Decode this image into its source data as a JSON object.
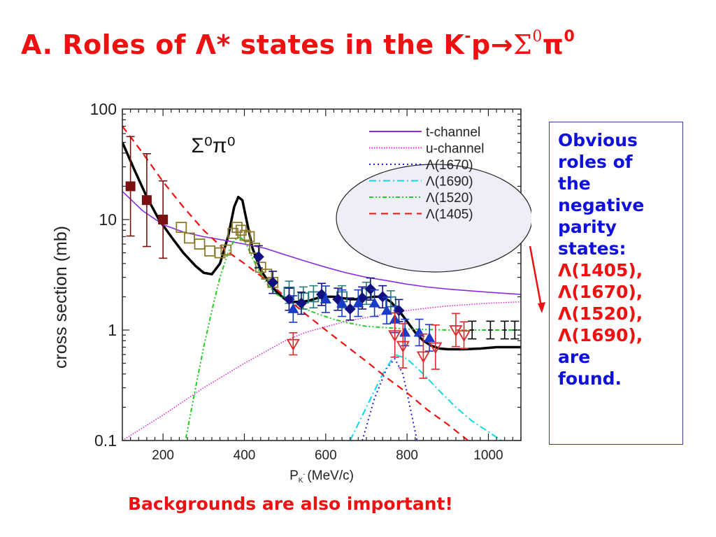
{
  "slide": {
    "title_prefix": "A. Roles of Λ* states  in the K",
    "title_sup1": "-",
    "title_p": "p",
    "title_arrow": "→",
    "title_sigma": "Σ",
    "title_sup2": "0",
    "title_pi": "π",
    "title_sup3": "0",
    "side_lines_blue": [
      "Obvious",
      "roles of",
      "the",
      "negative",
      "parity",
      "states:"
    ],
    "side_lines_red": [
      "Λ(1405),",
      "Λ(1670),",
      "Λ(1520),",
      "Λ(1690),"
    ],
    "side_lines_end": [
      "are",
      "found."
    ],
    "caption": "Backgrounds are also important!"
  },
  "colors": {
    "title": "#ee1111",
    "side_text": "#1010dd",
    "ellipse_fill": "#eeeef8"
  },
  "chart_data": {
    "type": "line",
    "ylabel": "cross section (mb)",
    "xlabel_main": "P",
    "xlabel_sub": "K",
    "xlabel_sub_sup": "-",
    "xlabel_unit": "(MeV/c)",
    "inset_label": "Σ⁰π⁰",
    "xlim": [
      100,
      1080
    ],
    "ylim": [
      0.1,
      100
    ],
    "yscale": "log",
    "xticks": [
      200,
      400,
      600,
      800,
      1000
    ],
    "yticks": [
      {
        "v": 0.1,
        "label": "0.1"
      },
      {
        "v": 1,
        "label": "1"
      },
      {
        "v": 10,
        "label": "10"
      },
      {
        "v": 100,
        "label": "100"
      }
    ],
    "legend_position": "top-right",
    "legend": [
      {
        "label": "t-channel",
        "color": "#8a2be2",
        "dash": ""
      },
      {
        "label": "u-channel",
        "color": "#e020e0",
        "dash": "1.5,2"
      },
      {
        "label": "Λ(1670)",
        "color": "#2020e0",
        "dash": "2,4"
      },
      {
        "label": "Λ(1690)",
        "color": "#10d8e8",
        "dash": "10,4,2,4"
      },
      {
        "label": "Λ(1520)",
        "color": "#20cc20",
        "dash": "6,3,2,3,2,3"
      },
      {
        "label": "Λ(1405)",
        "color": "#ee1111",
        "dash": "10,7"
      }
    ],
    "series": [
      {
        "name": "total",
        "color": "#000000",
        "width": 3.5,
        "dash": "",
        "x": [
          100,
          130,
          160,
          190,
          220,
          250,
          280,
          300,
          320,
          340,
          360,
          375,
          385,
          395,
          405,
          420,
          440,
          460,
          480,
          500,
          520,
          540,
          560,
          580,
          600,
          620,
          640,
          660,
          680,
          700,
          720,
          740,
          760,
          780,
          800,
          820,
          840,
          860,
          880,
          900,
          940,
          980,
          1020,
          1080
        ],
        "y": [
          50,
          28,
          16,
          10,
          7,
          5,
          3.8,
          3.3,
          3.2,
          4,
          7,
          13,
          16,
          15,
          10,
          5.5,
          3.5,
          2.7,
          2.2,
          1.9,
          1.8,
          1.8,
          1.85,
          1.95,
          2.0,
          2.0,
          1.95,
          1.9,
          1.9,
          1.95,
          2.0,
          2.0,
          1.8,
          1.5,
          1.2,
          0.95,
          0.8,
          0.72,
          0.68,
          0.67,
          0.67,
          0.68,
          0.7,
          0.7
        ]
      },
      {
        "name": "t-channel",
        "color": "#8a2be2",
        "width": 1.6,
        "dash": "",
        "x": [
          100,
          150,
          200,
          250,
          300,
          350,
          400,
          450,
          500,
          550,
          600,
          650,
          700,
          750,
          800,
          850,
          900,
          950,
          1000,
          1080
        ],
        "y": [
          18,
          12,
          9,
          7.7,
          7,
          6.5,
          6.0,
          5.5,
          4.8,
          4.2,
          3.7,
          3.3,
          3.0,
          2.8,
          2.6,
          2.45,
          2.35,
          2.27,
          2.2,
          2.1
        ]
      },
      {
        "name": "u-channel",
        "color": "#e020e0",
        "width": 1.5,
        "dash": "1.5,2",
        "x": [
          100,
          200,
          300,
          400,
          500,
          550,
          600,
          650,
          700,
          750,
          800,
          850,
          900,
          950,
          1000,
          1080
        ],
        "y": [
          0.1,
          0.17,
          0.3,
          0.5,
          0.8,
          0.95,
          1.07,
          1.2,
          1.3,
          1.4,
          1.5,
          1.58,
          1.65,
          1.7,
          1.75,
          1.8
        ]
      },
      {
        "name": "Λ(1670)",
        "color": "#2020e0",
        "width": 2,
        "dash": "2,4",
        "x": [
          690,
          720,
          750,
          770,
          790,
          810,
          830
        ],
        "y": [
          0.1,
          0.24,
          0.45,
          0.55,
          0.4,
          0.18,
          0.08
        ]
      },
      {
        "name": "Λ(1690)",
        "color": "#10d8e8",
        "width": 2,
        "dash": "10,4,2,4",
        "x": [
          660,
          700,
          740,
          770,
          800,
          840,
          880,
          920,
          960,
          1000,
          1050
        ],
        "y": [
          0.1,
          0.2,
          0.4,
          0.6,
          0.55,
          0.4,
          0.28,
          0.2,
          0.15,
          0.12,
          0.09
        ]
      },
      {
        "name": "Λ(1520)",
        "color": "#20cc20",
        "width": 2,
        "dash": "6,3,2,3,2,3",
        "x": [
          250,
          280,
          300,
          320,
          340,
          360,
          375,
          390,
          405,
          420,
          440,
          460,
          480,
          500,
          540,
          580,
          620,
          660,
          700,
          750,
          800,
          900,
          1000,
          1080
        ],
        "y": [
          0.08,
          0.3,
          0.7,
          1.5,
          3,
          5,
          6.5,
          7,
          6,
          4.5,
          3.2,
          2.5,
          2.1,
          1.9,
          1.6,
          1.4,
          1.25,
          1.15,
          1.08,
          1.05,
          1.02,
          1.0,
          1.0,
          1.0
        ]
      },
      {
        "name": "Λ(1405)",
        "color": "#ee1111",
        "width": 2.2,
        "dash": "10,7",
        "x": [
          100,
          150,
          200,
          250,
          300,
          350,
          400,
          450,
          500,
          550,
          600,
          650,
          700,
          750,
          800,
          850,
          900,
          950,
          980
        ],
        "y": [
          70,
          40,
          22,
          13,
          8,
          5.4,
          4.0,
          2.9,
          2.0,
          1.4,
          1.0,
          0.72,
          0.52,
          0.37,
          0.27,
          0.19,
          0.14,
          0.1,
          0.085
        ]
      }
    ],
    "points": [
      {
        "name": "dark-red squares",
        "marker": "square-filled",
        "color": "#7a1010",
        "data": [
          [
            120,
            20,
            0.45
          ],
          [
            160,
            15,
            0.42
          ],
          [
            200,
            10,
            0.35
          ]
        ]
      },
      {
        "name": "olive open squares",
        "marker": "square-open",
        "color": "#8a7a2a",
        "data": [
          [
            245,
            8.5,
            0
          ],
          [
            265,
            6.8,
            0
          ],
          [
            290,
            6.0,
            0
          ],
          [
            315,
            5.2,
            0
          ],
          [
            340,
            5.0,
            0
          ],
          [
            355,
            5.3,
            0
          ],
          [
            372,
            7.5,
            0
          ],
          [
            382,
            8.5,
            0
          ],
          [
            392,
            8.0,
            0
          ],
          [
            402,
            7.2,
            0
          ],
          [
            412,
            7.0,
            0
          ],
          [
            425,
            5.5,
            0
          ],
          [
            440,
            3.7,
            0
          ],
          [
            455,
            3.2,
            0
          ],
          [
            470,
            2.7,
            0
          ]
        ]
      },
      {
        "name": "teal open squares",
        "marker": "square-open",
        "color": "#2a7a7a",
        "data": [
          [
            510,
            2.2,
            0.1
          ],
          [
            545,
            1.95,
            0.1
          ],
          [
            570,
            2.0,
            0.1
          ],
          [
            640,
            2.0,
            0.1
          ],
          [
            700,
            2.15,
            0.1
          ],
          [
            760,
            1.8,
            0.1
          ]
        ]
      },
      {
        "name": "navy diamonds",
        "marker": "diamond-filled",
        "color": "#101080",
        "data": [
          [
            435,
            4.6,
            0.1
          ],
          [
            470,
            2.7,
            0.1
          ],
          [
            510,
            1.9,
            0.1
          ],
          [
            540,
            1.75,
            0.1
          ],
          [
            590,
            2.1,
            0.1
          ],
          [
            630,
            1.9,
            0.1
          ],
          [
            660,
            1.55,
            0.1
          ],
          [
            690,
            1.95,
            0.1
          ],
          [
            710,
            2.35,
            0.1
          ],
          [
            740,
            2.0,
            0.1
          ],
          [
            780,
            1.5,
            0.1
          ]
        ]
      },
      {
        "name": "blue triangles",
        "marker": "triangle-filled",
        "color": "#1a3ac8",
        "data": [
          [
            520,
            1.55,
            0.12
          ],
          [
            600,
            1.9,
            0.12
          ],
          [
            640,
            1.75,
            0.12
          ],
          [
            680,
            1.75,
            0.12
          ],
          [
            720,
            1.75,
            0.12
          ],
          [
            750,
            1.5,
            0.12
          ],
          [
            770,
            1.25,
            0.12
          ],
          [
            795,
            0.95,
            0.12
          ],
          [
            830,
            0.95,
            0.12
          ],
          [
            855,
            0.85,
            0.12
          ]
        ]
      },
      {
        "name": "red open inverted triangles",
        "marker": "triangle-down-open",
        "color": "#e02828",
        "data": [
          [
            520,
            0.75,
            0.1
          ],
          [
            770,
            0.9,
            0.2
          ],
          [
            790,
            0.72,
            0.2
          ],
          [
            840,
            0.58,
            0.2
          ],
          [
            870,
            0.7,
            0.2
          ],
          [
            920,
            1.0,
            0.15
          ],
          [
            940,
            0.9,
            0.12
          ]
        ]
      },
      {
        "name": "black error bars",
        "marker": "bar",
        "color": "#000000",
        "data": [
          [
            960,
            1.0,
            0.08
          ],
          [
            1005,
            1.0,
            0.08
          ],
          [
            1040,
            1.0,
            0.08
          ],
          [
            1065,
            1.0,
            0.08
          ]
        ]
      }
    ]
  }
}
